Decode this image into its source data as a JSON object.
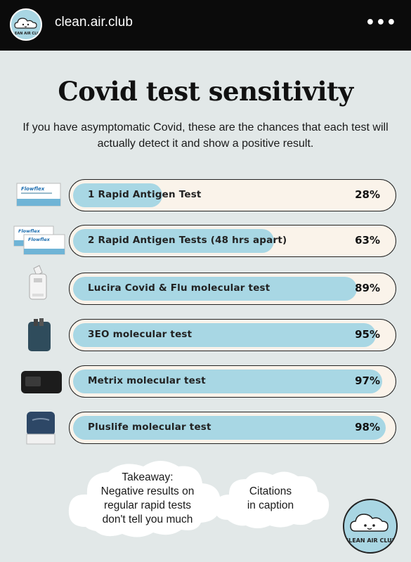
{
  "header": {
    "username": "clean.air.club",
    "more_icon": "more-dots-icon"
  },
  "post": {
    "title": "Covid test sensitivity",
    "subtitle": "If you have asymptomatic Covid, these are the chances that each test will actually detect it and show a positive result.",
    "tests": [
      {
        "label": "1 Rapid Antigen Test",
        "value": 28,
        "display": "28%"
      },
      {
        "label": "2 Rapid Antigen Tests (48 hrs apart)",
        "value": 63,
        "display": "63%"
      },
      {
        "label": "Lucira Covid & Flu molecular test",
        "value": 89,
        "display": "89%"
      },
      {
        "label": "3EO molecular test",
        "value": 95,
        "display": "95%"
      },
      {
        "label": "Metrix molecular test",
        "value": 97,
        "display": "97%"
      },
      {
        "label": "Pluslife molecular test",
        "value": 98,
        "display": "98%"
      }
    ],
    "takeaway_lines": [
      "Takeaway:",
      "Negative results on",
      "regular rapid tests",
      "don't tell you much"
    ],
    "citations_lines": [
      "Citations",
      "in caption"
    ],
    "brand_logo": "CLEAN AIR CLUB",
    "colors": {
      "bar_fill": "#a8d7e4",
      "bar_track": "#faf3ea",
      "background": "#e2e8e8"
    }
  }
}
